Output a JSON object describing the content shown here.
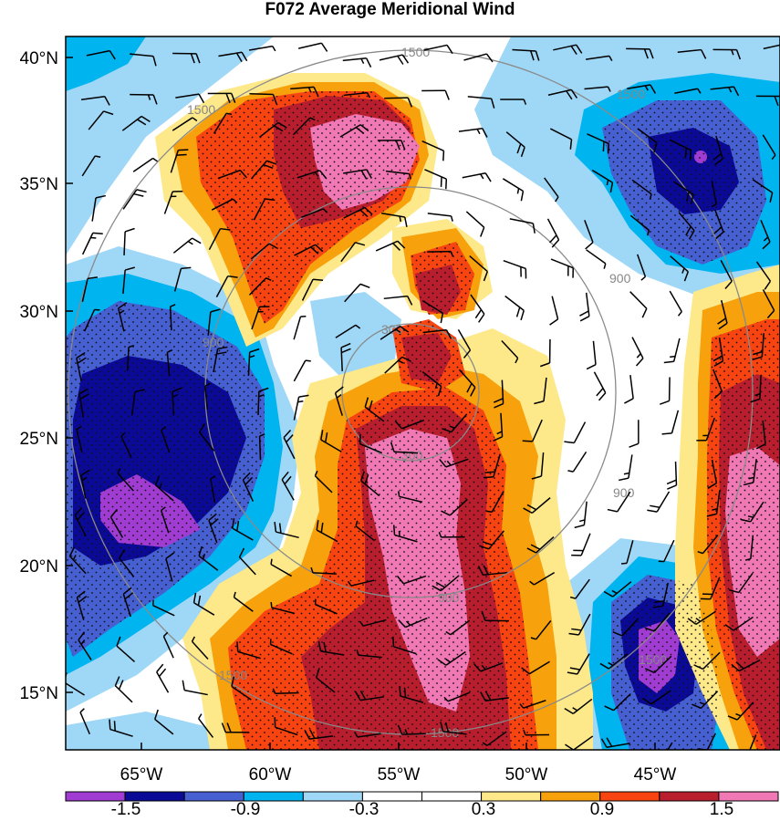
{
  "title": "F072 Average Meridional Wind",
  "colors": {
    "purple": "#a03cd2",
    "navy": "#0a0a96",
    "blue": "#4660d2",
    "cyan": "#00b4f0",
    "lightblue": "#9fd7f7",
    "white": "#ffffff",
    "lightyellow": "#fde98a",
    "orange": "#f7a10c",
    "redorange": "#f84410",
    "darkred": "#b81e2e",
    "pink": "#f078b4"
  },
  "lat_labels": [
    "40°N",
    "35°N",
    "30°N",
    "25°N",
    "20°N",
    "15°N"
  ],
  "lon_labels": [
    "65°W",
    "60°W",
    "55°W",
    "50°W",
    "45°W"
  ],
  "colorbar": {
    "labels": [
      "-1.5",
      "-0.9",
      "-0.3",
      "0.3",
      "0.9",
      "1.5"
    ],
    "swatches": [
      "#a03cd2",
      "#0a0a96",
      "#4660d2",
      "#00b4f0",
      "#9fd7f7",
      "#ffffff",
      "#ffffff",
      "#fde98a",
      "#f7a10c",
      "#f84410",
      "#b81e2e",
      "#f078b4"
    ]
  },
  "ring_labels": [
    "300",
    "900",
    "1500"
  ]
}
